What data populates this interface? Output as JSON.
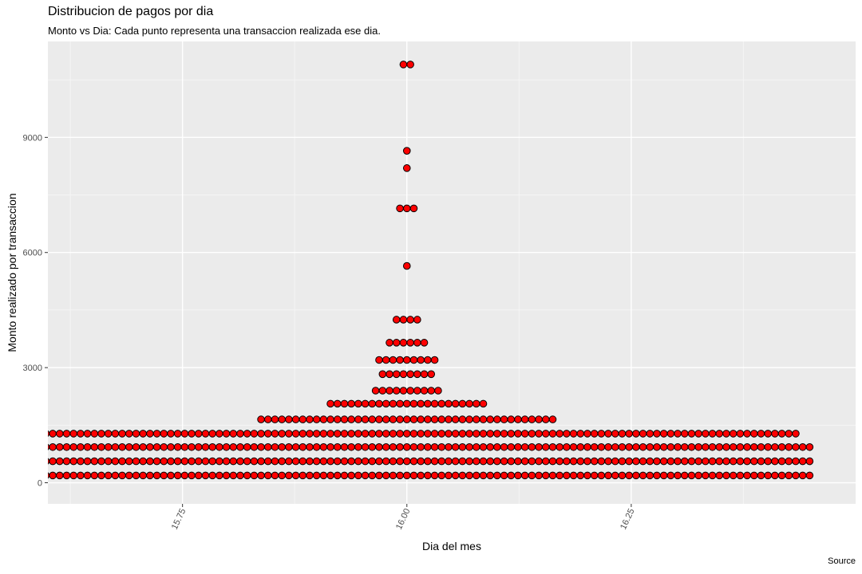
{
  "chart_data": {
    "type": "scatter",
    "title": "Distribucion de pagos por dia",
    "subtitle": "Monto vs Dia: Cada punto representa una transaccion realizada ese dia.",
    "caption": "Source",
    "xlabel": "Dia del mes",
    "ylabel": "Monto realizado por transaccion",
    "x_ticks": [
      "15.75",
      "16.00",
      "16.25"
    ],
    "y_ticks": [
      "0",
      "3000",
      "6000",
      "9000"
    ],
    "xlim": [
      15.6,
      16.5
    ],
    "ylim": [
      -550,
      11500
    ],
    "grid": true,
    "point_color": "#ff0000",
    "point_outline": "#000000",
    "panel_background": "#ebebeb",
    "layout": "dotplot stacked symmetrically around x = 16",
    "series": [
      {
        "x": 16,
        "rows": [
          {
            "y": 190,
            "count": 117
          },
          {
            "y": 560,
            "count": 117
          },
          {
            "y": 930,
            "count": 117
          },
          {
            "y": 1280,
            "count": 113
          },
          {
            "y": 1650,
            "count": 43
          },
          {
            "y": 2060,
            "count": 23
          },
          {
            "y": 2400,
            "count": 10
          },
          {
            "y": 2830,
            "count": 8
          },
          {
            "y": 3200,
            "count": 9
          },
          {
            "y": 3650,
            "count": 6
          },
          {
            "y": 4250,
            "count": 4
          },
          {
            "y": 5650,
            "count": 1
          },
          {
            "y": 7150,
            "count": 3
          },
          {
            "y": 8200,
            "count": 1
          },
          {
            "y": 8650,
            "count": 1
          },
          {
            "y": 10900,
            "count": 2
          }
        ]
      }
    ]
  }
}
